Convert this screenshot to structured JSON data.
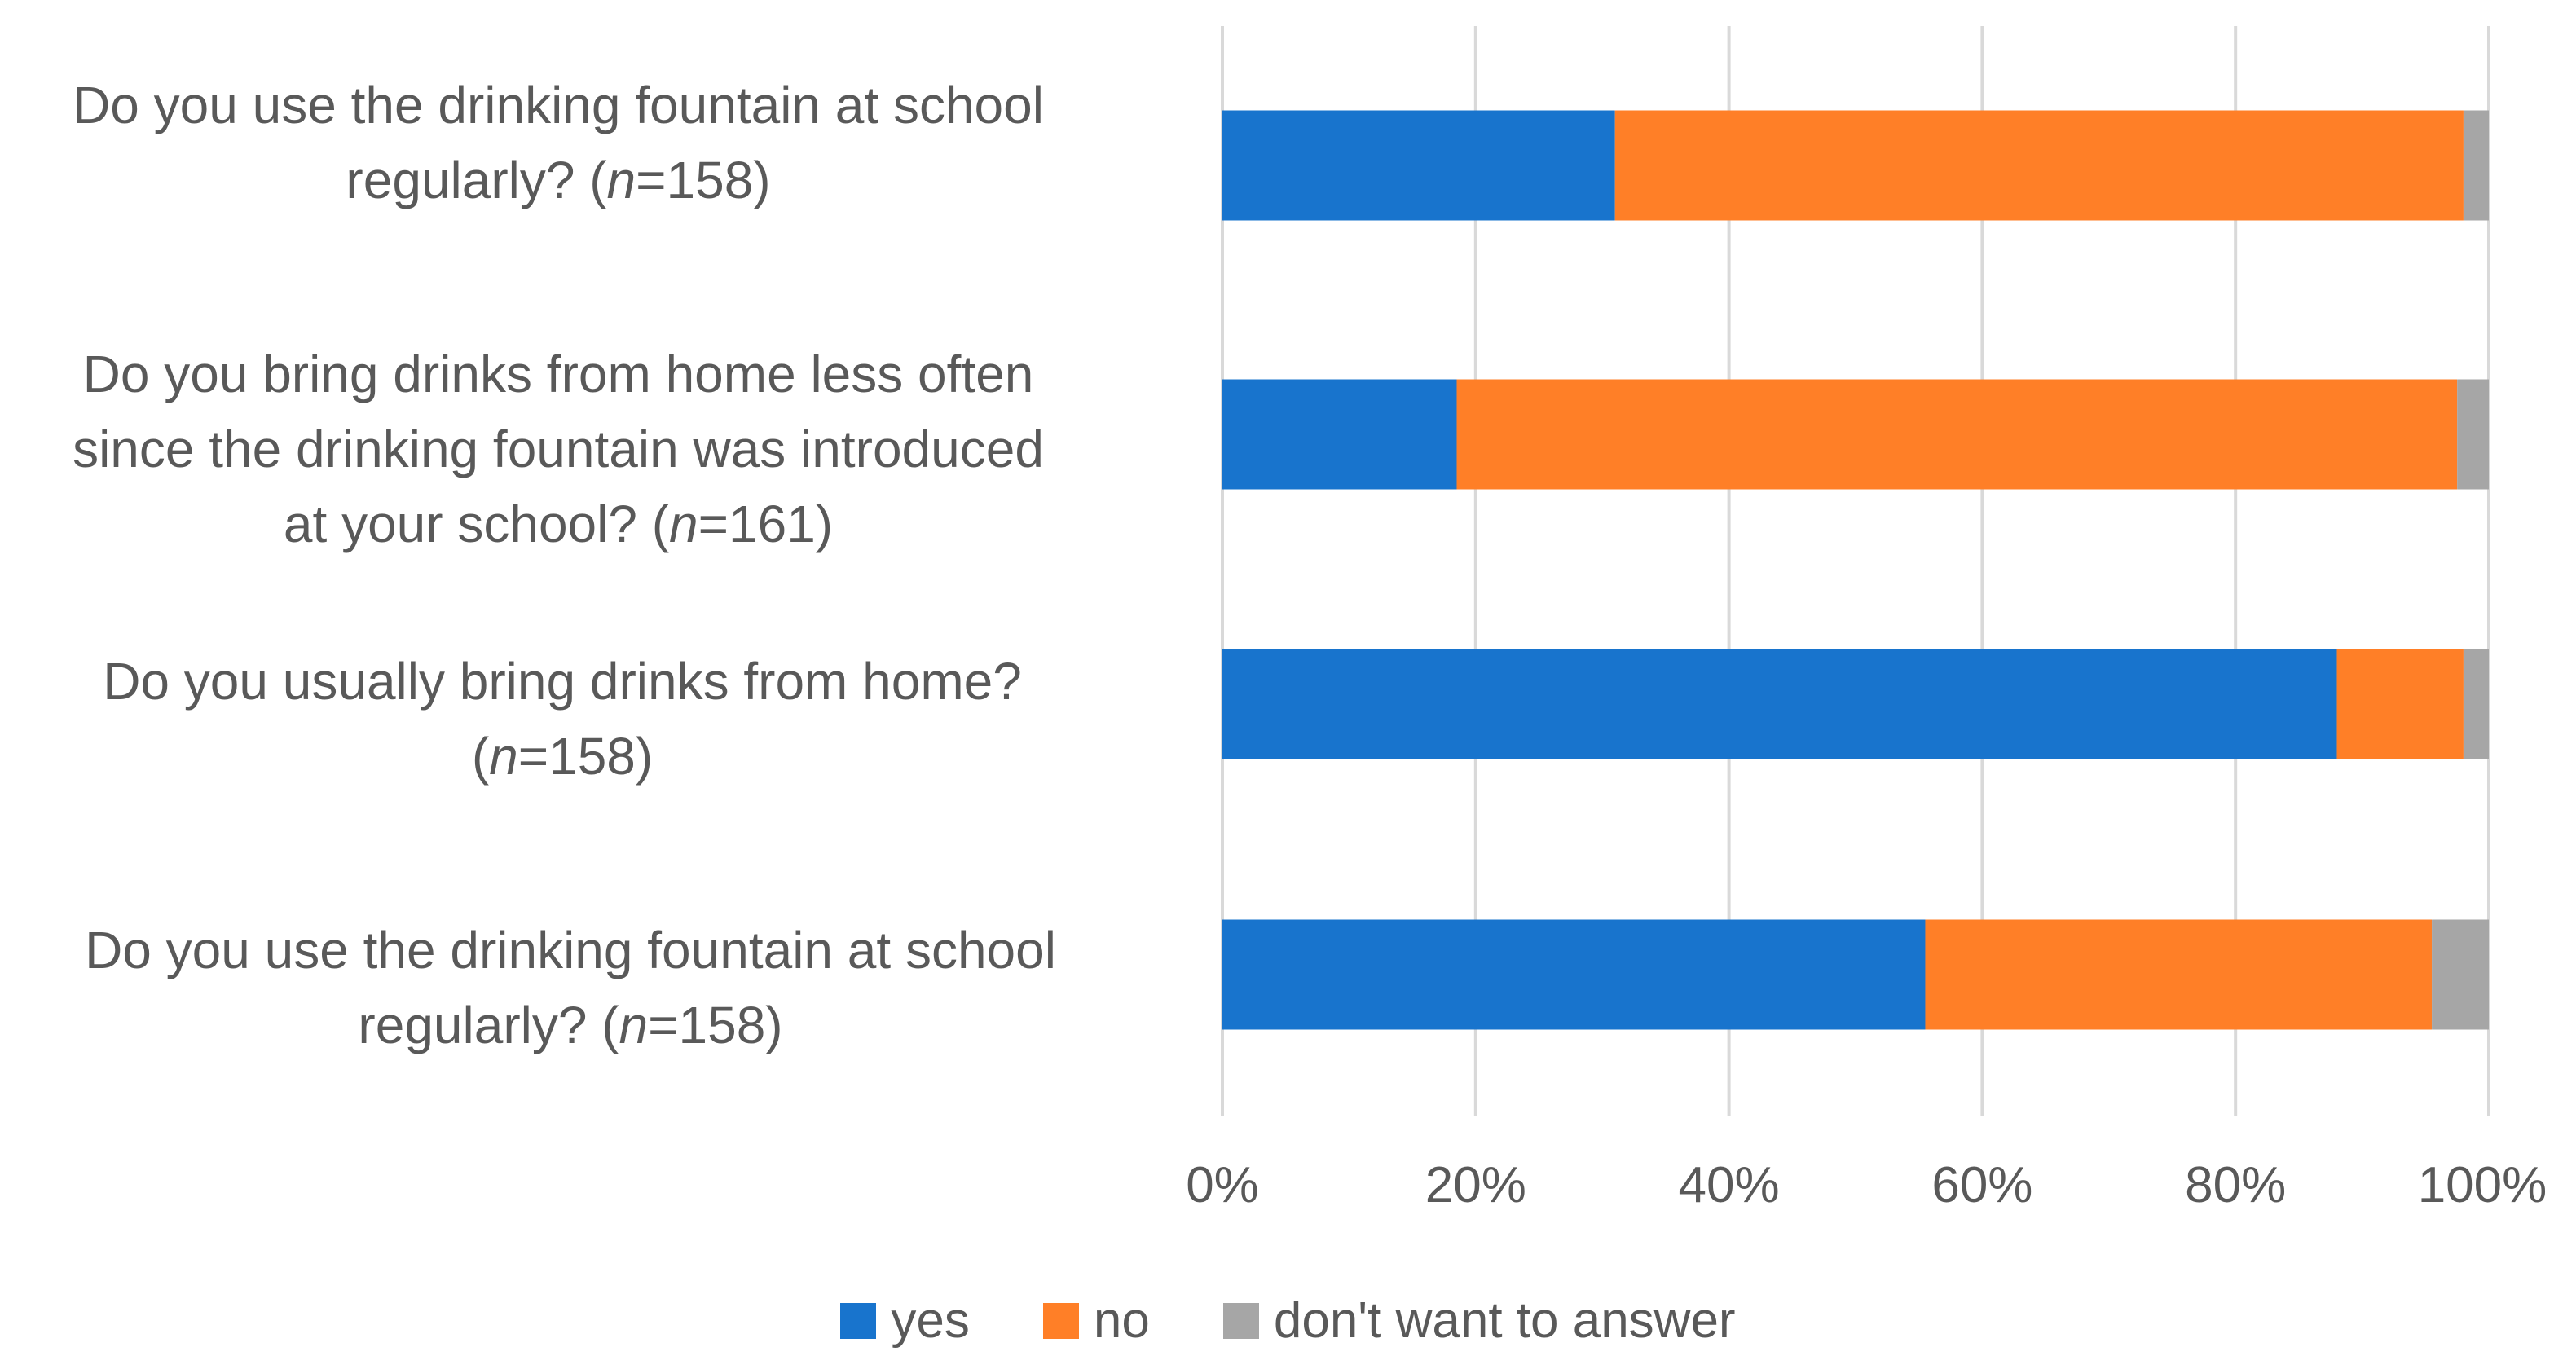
{
  "chart_data": {
    "type": "bar",
    "orientation": "horizontal",
    "stacked": true,
    "percent": true,
    "categories": [
      {
        "text": "Do you use the drinking fountain at school regularly? (",
        "n_label": "n",
        "rest": "=158)"
      },
      {
        "text": "Do you bring drinks from home less often since the drinking fountain was introduced at your school? (",
        "n_label": "n",
        "rest": "=161)"
      },
      {
        "text": "Do you usually bring drinks from home? (",
        "n_label": "n",
        "rest": "=158)"
      },
      {
        "text": "Do you use the drinking fountain at school regularly? (",
        "n_label": "n",
        "rest": "=158)"
      }
    ],
    "series": [
      {
        "name": "yes",
        "color": "#1874CD",
        "values": [
          31,
          18.5,
          88,
          55.5
        ]
      },
      {
        "name": "no",
        "color": "#FF7F27",
        "values": [
          67,
          79,
          10,
          40
        ]
      },
      {
        "name": "don't want to answer",
        "color": "#A6A6A6",
        "values": [
          2,
          2.5,
          2,
          4.5
        ]
      }
    ],
    "xlim": [
      0,
      100
    ],
    "xticks": [
      "0%",
      "20%",
      "40%",
      "60%",
      "80%",
      "100%"
    ],
    "grid": true,
    "legend_position": "bottom"
  }
}
